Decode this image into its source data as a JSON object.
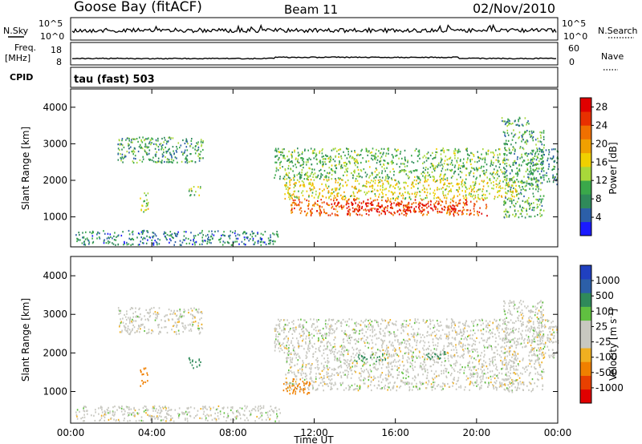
{
  "header": {
    "station": "Goose Bay (fitACF)",
    "beam": "Beam 11",
    "date": "02/Nov/2010"
  },
  "strip_nsky": {
    "left_label": "N.Sky",
    "left_ticks": [
      "10^5",
      "10^0"
    ],
    "right_ticks": [
      "10^5",
      "10^0"
    ],
    "right_label": "N.Search"
  },
  "strip_freq": {
    "left_label_line1": "Freq.",
    "left_label_line2": "[MHz]",
    "left_ticks": [
      "18",
      "8"
    ],
    "right_ticks": [
      "60",
      "0"
    ],
    "right_label": "Nave"
  },
  "strip_cpid": {
    "left_label": "CPID",
    "text": "tau (fast) 503"
  },
  "colors": {
    "power_scale": [
      "#1a1aff",
      "#2c5fa8",
      "#2f8a5a",
      "#3aa84a",
      "#a8d83a",
      "#f0d000",
      "#f0a000",
      "#f07000",
      "#e83000",
      "#e00000"
    ],
    "velocity_scale": [
      "#2040c0",
      "#2c5fa8",
      "#2f8a5a",
      "#60c040",
      "#c8c8c0",
      "#c8c8c0",
      "#f0b020",
      "#f08000",
      "#e84000",
      "#e00000"
    ]
  },
  "chart_data": [
    {
      "type": "heatmap",
      "name": "power",
      "xlabel": "Time UT",
      "ylabel": "Slant Range [km]",
      "x_unit": "hours UT",
      "xlim": [
        0,
        24
      ],
      "ylim": [
        180,
        4500
      ],
      "x_ticks": [
        "00:00",
        "04:00",
        "08:00",
        "12:00",
        "16:00",
        "20:00",
        "00:00"
      ],
      "y_ticks": [
        1000,
        2000,
        3000,
        4000
      ],
      "colorbar": {
        "label": "Power [dB]",
        "ticks": [
          "4",
          "8",
          "12",
          "16",
          "20",
          "24",
          "28"
        ],
        "range": [
          0,
          30
        ]
      },
      "regions": [
        {
          "t": [
            0.2,
            10.3
          ],
          "r": [
            250,
            650
          ],
          "value": 7
        },
        {
          "t": [
            2.3,
            6.5
          ],
          "r": [
            2500,
            3200
          ],
          "value": 9
        },
        {
          "t": [
            3.4,
            3.8
          ],
          "r": [
            1150,
            1700
          ],
          "value": 14
        },
        {
          "t": [
            5.8,
            6.4
          ],
          "r": [
            1600,
            1900
          ],
          "value": 12
        },
        {
          "t": [
            10.0,
            21.5
          ],
          "r": [
            2050,
            2900
          ],
          "value": 11
        },
        {
          "t": [
            10.5,
            22.0
          ],
          "r": [
            1500,
            2050
          ],
          "value": 16
        },
        {
          "t": [
            10.8,
            20.5
          ],
          "r": [
            1050,
            1500
          ],
          "value": 24
        },
        {
          "t": [
            13.5,
            19.5
          ],
          "r": [
            1150,
            1400
          ],
          "value": 28
        },
        {
          "t": [
            21.3,
            23.3
          ],
          "r": [
            1000,
            3400
          ],
          "value": 10
        },
        {
          "t": [
            22.5,
            24.0
          ],
          "r": [
            1900,
            2900
          ],
          "value": 8
        },
        {
          "t": [
            21.2,
            22.6
          ],
          "r": [
            3500,
            3750
          ],
          "value": 9
        }
      ]
    },
    {
      "type": "heatmap",
      "name": "velocity",
      "xlabel": "Time UT",
      "ylabel": "Slant Range [km]",
      "x_unit": "hours UT",
      "xlim": [
        0,
        24
      ],
      "ylim": [
        180,
        4500
      ],
      "x_ticks": [
        "00:00",
        "04:00",
        "08:00",
        "12:00",
        "16:00",
        "20:00",
        "00:00"
      ],
      "y_ticks": [
        1000,
        2000,
        3000,
        4000
      ],
      "colorbar": {
        "label": "Velocity [m s^-1]",
        "ticks": [
          "1000",
          "500",
          "100",
          "25",
          "-25",
          "-100",
          "-500",
          "-1000"
        ]
      },
      "regions": [
        {
          "t": [
            0.2,
            10.3
          ],
          "r": [
            250,
            650
          ],
          "value": 0
        },
        {
          "t": [
            2.3,
            6.5
          ],
          "r": [
            2500,
            3200
          ],
          "value": 0
        },
        {
          "t": [
            3.4,
            3.8
          ],
          "r": [
            1150,
            1700
          ],
          "value": -300
        },
        {
          "t": [
            5.8,
            6.4
          ],
          "r": [
            1600,
            1900
          ],
          "value": 150
        },
        {
          "t": [
            10.0,
            21.5
          ],
          "r": [
            2050,
            2900
          ],
          "value": 0
        },
        {
          "t": [
            10.5,
            22.0
          ],
          "r": [
            1050,
            2050
          ],
          "value": 0
        },
        {
          "t": [
            10.4,
            11.8
          ],
          "r": [
            950,
            1350
          ],
          "value": -150
        },
        {
          "t": [
            14.0,
            15.5
          ],
          "r": [
            1800,
            2000
          ],
          "value": 150
        },
        {
          "t": [
            17.5,
            18.5
          ],
          "r": [
            1850,
            2050
          ],
          "value": 400
        },
        {
          "t": [
            21.3,
            23.3
          ],
          "r": [
            1000,
            3400
          ],
          "value": 0
        },
        {
          "t": [
            22.5,
            24.0
          ],
          "r": [
            1900,
            2900
          ],
          "value": 0
        }
      ]
    }
  ]
}
